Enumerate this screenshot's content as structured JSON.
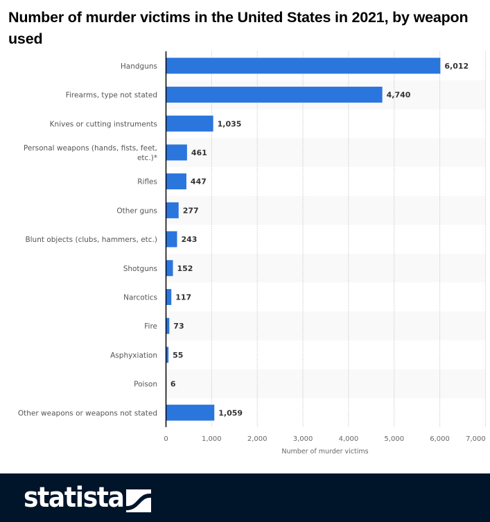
{
  "title": "Number of murder victims in the United States in 2021, by weapon used",
  "chart_data": {
    "type": "bar",
    "orientation": "horizontal",
    "title": "Number of murder victims in the United States in 2021, by weapon used",
    "xlabel": "Number of murder victims",
    "ylabel": "",
    "xlim": [
      0,
      7000
    ],
    "xticks": [
      0,
      1000,
      2000,
      3000,
      4000,
      5000,
      6000,
      7000
    ],
    "xtick_labels": [
      "0",
      "1,000",
      "2,000",
      "3,000",
      "4,000",
      "5,000",
      "6,000",
      "7,000"
    ],
    "grid": true,
    "bar_color": "#2a76dc",
    "categories": [
      [
        "Handguns"
      ],
      [
        "Firearms, type not stated"
      ],
      [
        "Knives or cutting instruments"
      ],
      [
        "Personal weapons (hands, fists, feet,",
        "etc.)*"
      ],
      [
        "Rifles"
      ],
      [
        "Other guns"
      ],
      [
        "Blunt objects (clubs, hammers, etc.)"
      ],
      [
        "Shotguns"
      ],
      [
        "Narcotics"
      ],
      [
        "Fire"
      ],
      [
        "Asphyxiation"
      ],
      [
        "Poison"
      ],
      [
        "Other weapons or weapons not stated"
      ]
    ],
    "values": [
      6012,
      4740,
      1035,
      461,
      447,
      277,
      243,
      152,
      117,
      73,
      55,
      6,
      1059
    ],
    "value_labels": [
      "6,012",
      "4,740",
      "1,035",
      "461",
      "447",
      "277",
      "243",
      "152",
      "117",
      "73",
      "55",
      "6",
      "1,059"
    ]
  },
  "footer": {
    "brand": "statista",
    "background": "#00142a",
    "logo_icon": "statista-wave-icon"
  }
}
